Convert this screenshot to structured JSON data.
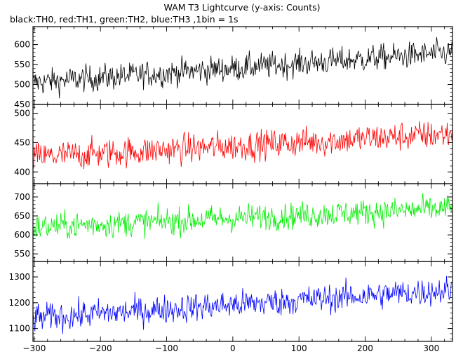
{
  "title": "WAM T3 Lightcurve (y-axis: Counts)",
  "subtitle": "black:TH0, red:TH1, green:TH2, blue:TH3 ,1bin = 1s",
  "chart_data": [
    {
      "type": "line",
      "series": [
        {
          "name": "TH0",
          "color": "#000000",
          "trend": [
            505,
            580
          ],
          "noise": 30
        }
      ],
      "x_range": [
        -302,
        332
      ],
      "ylim": [
        450,
        645
      ],
      "yticks": [
        450,
        500,
        550,
        600
      ],
      "xticks": [
        -300,
        -200,
        -100,
        0,
        100,
        200,
        300
      ],
      "show_xtick_labels": false
    },
    {
      "type": "line",
      "series": [
        {
          "name": "TH1",
          "color": "#ff0000",
          "trend": [
            425,
            465
          ],
          "noise": 23
        }
      ],
      "x_range": [
        -302,
        332
      ],
      "ylim": [
        380,
        515
      ],
      "yticks": [
        400,
        450,
        500
      ],
      "xticks": [
        -300,
        -200,
        -100,
        0,
        100,
        200,
        300
      ],
      "show_xtick_labels": false
    },
    {
      "type": "line",
      "series": [
        {
          "name": "TH2",
          "color": "#00ee00",
          "trend": [
            620,
            670
          ],
          "noise": 32
        }
      ],
      "x_range": [
        -302,
        332
      ],
      "ylim": [
        530,
        735
      ],
      "yticks": [
        550,
        600,
        650,
        700
      ],
      "xticks": [
        -300,
        -200,
        -100,
        0,
        100,
        200,
        300
      ],
      "show_xtick_labels": false
    },
    {
      "type": "line",
      "series": [
        {
          "name": "TH3",
          "color": "#0000ff",
          "trend": [
            1140,
            1250
          ],
          "noise": 50
        }
      ],
      "x_range": [
        -302,
        332
      ],
      "ylim": [
        1050,
        1360
      ],
      "yticks": [
        1100,
        1200,
        1300
      ],
      "xticks": [
        -300,
        -200,
        -100,
        0,
        100,
        200,
        300
      ],
      "show_xtick_labels": true
    }
  ]
}
